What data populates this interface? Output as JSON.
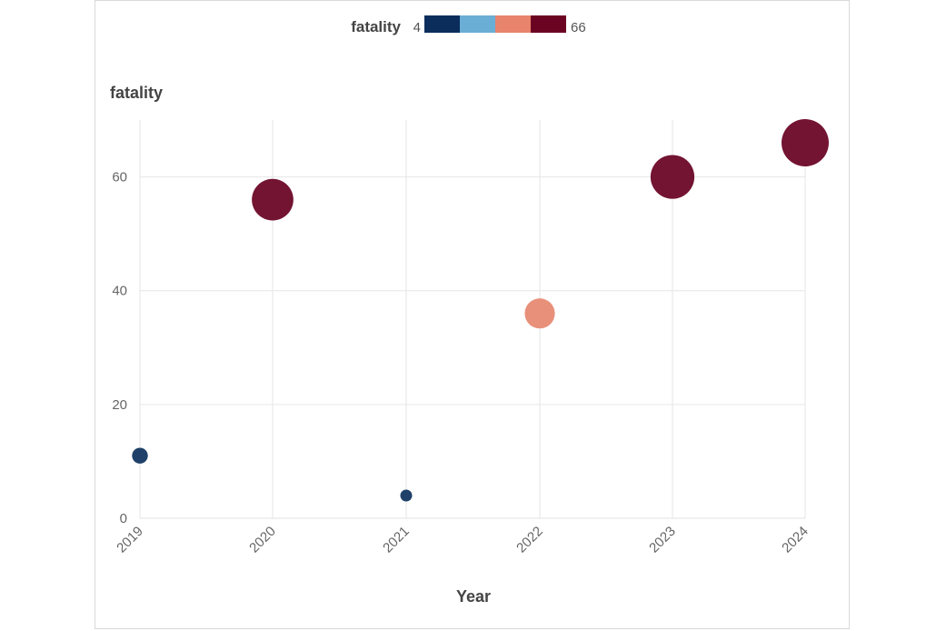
{
  "legend": {
    "title": "fatality",
    "min_label": "4",
    "max_label": "66",
    "colors": [
      "#0b2d5b",
      "#6aaed6",
      "#e8836c",
      "#6b0423"
    ]
  },
  "chart_data": {
    "type": "scatter",
    "title": "",
    "xlabel": "Year",
    "ylabel": "fatality",
    "ylim": [
      0,
      70
    ],
    "yticks": [
      0,
      20,
      40,
      60
    ],
    "categories": [
      "2019",
      "2020",
      "2021",
      "2022",
      "2023",
      "2024"
    ],
    "values": [
      11,
      56,
      4,
      36,
      60,
      66
    ],
    "size_and_color_by": "fatality",
    "point_colors": [
      "#1f4068",
      "#731432",
      "#1f4068",
      "#e8907a",
      "#731432",
      "#731432"
    ],
    "grid": true
  }
}
